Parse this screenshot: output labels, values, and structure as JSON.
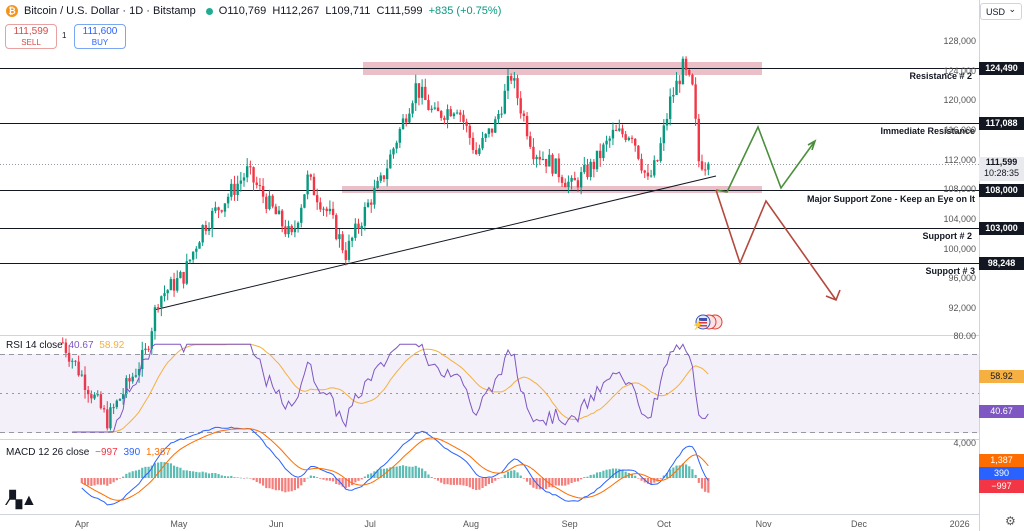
{
  "header": {
    "title": "Bitcoin / U.S. Dollar · 1D · Bitstamp",
    "open": "O110,769",
    "high": "H112,267",
    "low": "L109,711",
    "close": "C111,599",
    "change": "+835 (+0.75%)"
  },
  "trade": {
    "sell_price": "111,599",
    "sell_label": "SELL",
    "buy_price": "111,600",
    "buy_label": "BUY",
    "spread": "1"
  },
  "currency": "USD",
  "price_axis": {
    "ticks": [
      "128,000",
      "124,000",
      "120,000",
      "116,000",
      "112,000",
      "108,000",
      "104,000",
      "100,000",
      "96,000",
      "92,000"
    ],
    "ylim": [
      88500,
      130000
    ]
  },
  "price_tags": {
    "resistance2": "124,490",
    "immediate_resistance": "117,088",
    "current": "111,599",
    "countdown": "10:28:35",
    "support_zone": "108,000",
    "support2": "103,000",
    "support3": "98,248"
  },
  "levels": {
    "resistance2": "Resistance # 2",
    "immediate_resistance": "Immediate Resistance",
    "support_zone": "Major Support Zone - Keep an Eye on It",
    "support2": "Support # 2",
    "support3": "Support # 3"
  },
  "rsi": {
    "title": "RSI 14 close",
    "value": "40.67",
    "ma_value": "58.92",
    "axis_top": "80.00"
  },
  "macd": {
    "title": "MACD 12 26 close",
    "hist": "−997",
    "macd": "390",
    "signal": "1,387",
    "axis_top": "4,000"
  },
  "time_axis": [
    "Apr",
    "May",
    "Jun",
    "Jul",
    "Aug",
    "Sep",
    "Oct",
    "Nov",
    "Dec",
    "2026"
  ],
  "colors": {
    "up": "#089981",
    "down": "#f23645",
    "zone": "#e8b4bd",
    "rsi": "#7e57c2",
    "rsi_ma": "#f5b041",
    "macd": "#2962ff",
    "signal": "#ff6d00",
    "bull_path": "#4a8f3a",
    "bear_path": "#b5483d"
  },
  "chart_data": {
    "type": "candlestick",
    "title": "Bitcoin / U.S. Dollar · 1D · Bitstamp",
    "close_path": [
      [
        "2025-03-25",
        87500
      ],
      [
        "2025-04-08",
        77000
      ],
      [
        "2025-04-20",
        86000
      ],
      [
        "2025-04-24",
        93500
      ],
      [
        "2025-05-02",
        96500
      ],
      [
        "2025-05-08",
        103000
      ],
      [
        "2025-05-22",
        110500
      ],
      [
        "2025-06-05",
        101500
      ],
      [
        "2025-06-10",
        109500
      ],
      [
        "2025-06-17",
        104500
      ],
      [
        "2025-06-22",
        99500
      ],
      [
        "2025-06-30",
        107000
      ],
      [
        "2025-07-03",
        109000
      ],
      [
        "2025-07-14",
        122000
      ],
      [
        "2025-07-20",
        118000
      ],
      [
        "2025-07-27",
        119500
      ],
      [
        "2025-08-02",
        113000
      ],
      [
        "2025-08-08",
        117000
      ],
      [
        "2025-08-13",
        123500
      ],
      [
        "2025-08-20",
        113500
      ],
      [
        "2025-08-26",
        111500
      ],
      [
        "2025-09-01",
        108500
      ],
      [
        "2025-09-08",
        111500
      ],
      [
        "2025-09-14",
        115500
      ],
      [
        "2025-09-20",
        115800
      ],
      [
        "2025-09-25",
        109000
      ],
      [
        "2025-09-28",
        112000
      ],
      [
        "2025-10-02",
        120000
      ],
      [
        "2025-10-06",
        124490
      ],
      [
        "2025-10-09",
        121500
      ],
      [
        "2025-10-11",
        112000
      ],
      [
        "2025-10-14",
        111599
      ]
    ],
    "levels": [
      {
        "label": "Resistance # 2",
        "value": 124490
      },
      {
        "label": "Immediate Resistance",
        "value": 117088
      },
      {
        "label": "Major Support Zone - Keep an Eye on It",
        "value": 108000
      },
      {
        "label": "Support # 2",
        "value": 103000
      },
      {
        "label": "Support # 3",
        "value": 98248
      }
    ],
    "bull_scenario": [
      [
        111000,
        "2025-10-16"
      ],
      [
        108000,
        "2025-10-19"
      ],
      [
        117000,
        "2025-10-27"
      ],
      [
        108000,
        "2025-11-04"
      ],
      [
        114500,
        "2025-11-12"
      ]
    ],
    "bear_scenario": [
      [
        108500,
        "2025-10-16"
      ],
      [
        98500,
        "2025-10-25"
      ],
      [
        108000,
        "2025-11-01"
      ],
      [
        92500,
        "2025-11-12"
      ]
    ],
    "rsi": {
      "value": 40.67,
      "ma": 58.92,
      "range": [
        0,
        100
      ]
    },
    "macd": {
      "macd": 390,
      "signal": 1387,
      "histogram": -997
    },
    "x_ticks": [
      "Apr",
      "May",
      "Jun",
      "Jul",
      "Aug",
      "Sep",
      "Oct",
      "Nov",
      "Dec",
      "2026"
    ],
    "y_ticks": [
      128000,
      124000,
      120000,
      116000,
      112000,
      108000,
      104000,
      100000,
      96000,
      92000
    ]
  }
}
